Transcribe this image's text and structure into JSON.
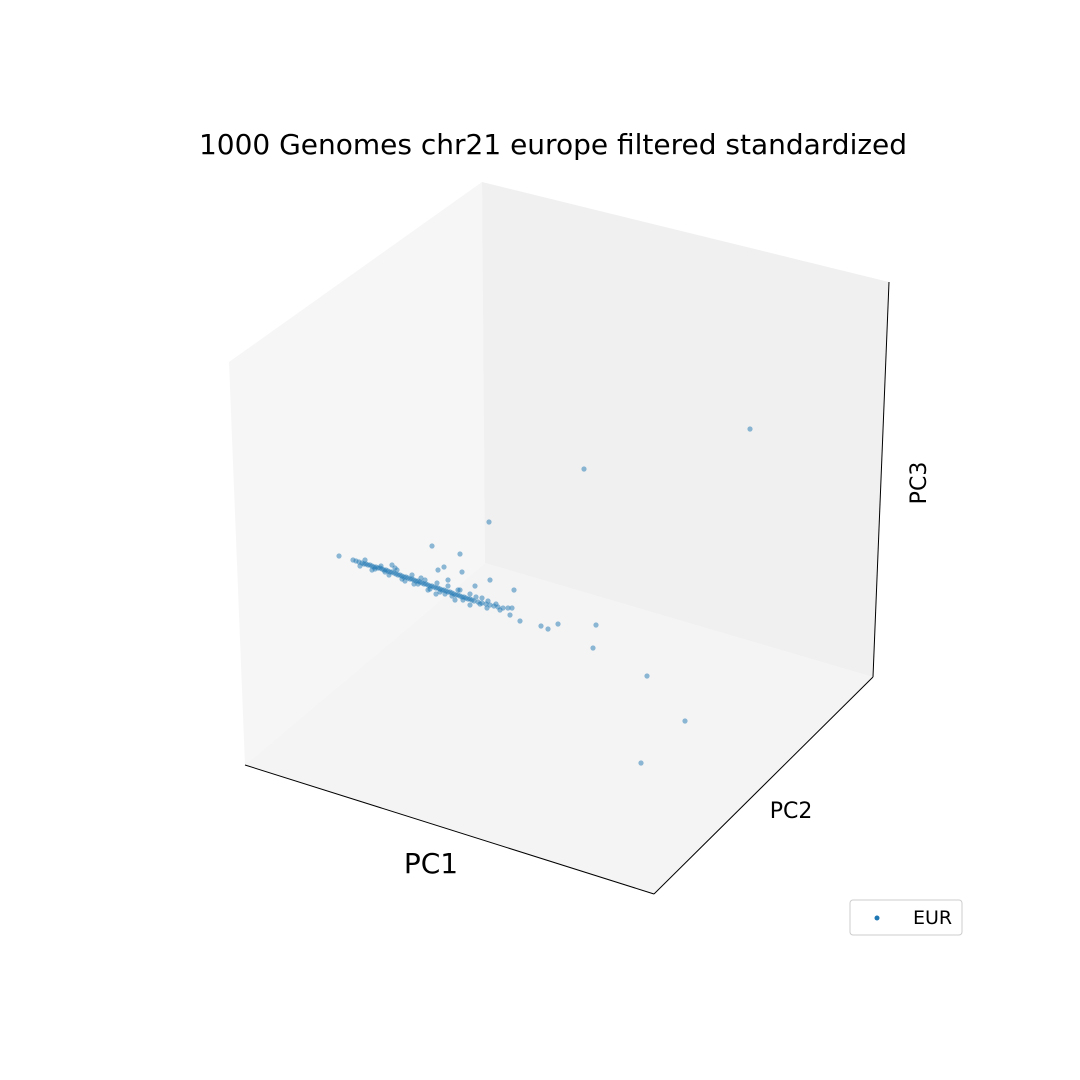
{
  "chart_data": {
    "type": "scatter",
    "dimensions": 3,
    "title": "1000 Genomes chr21 europe filtered standardized",
    "xlabel": "PC1",
    "ylabel": "PC2",
    "zlabel": "PC3",
    "ticks_visible": false,
    "grid": false,
    "legend": {
      "placement": "bottom-right",
      "entries": [
        "EUR"
      ]
    },
    "series": [
      {
        "name": "EUR",
        "color": "#1f77b4",
        "points_projected": [
          [
            339,
            556
          ],
          [
            353,
            560
          ],
          [
            356,
            561
          ],
          [
            359,
            562
          ],
          [
            362,
            563
          ],
          [
            364,
            564
          ],
          [
            366,
            564
          ],
          [
            368,
            565
          ],
          [
            370,
            565
          ],
          [
            372,
            566
          ],
          [
            374,
            567
          ],
          [
            376,
            567
          ],
          [
            378,
            568
          ],
          [
            380,
            568
          ],
          [
            382,
            569
          ],
          [
            384,
            570
          ],
          [
            386,
            570
          ],
          [
            388,
            571
          ],
          [
            390,
            572
          ],
          [
            392,
            572
          ],
          [
            394,
            573
          ],
          [
            396,
            574
          ],
          [
            398,
            575
          ],
          [
            400,
            575
          ],
          [
            402,
            576
          ],
          [
            404,
            577
          ],
          [
            406,
            577
          ],
          [
            408,
            578
          ],
          [
            410,
            579
          ],
          [
            412,
            579
          ],
          [
            414,
            580
          ],
          [
            416,
            581
          ],
          [
            418,
            581
          ],
          [
            420,
            582
          ],
          [
            422,
            583
          ],
          [
            424,
            584
          ],
          [
            426,
            584
          ],
          [
            428,
            585
          ],
          [
            430,
            586
          ],
          [
            432,
            586
          ],
          [
            434,
            587
          ],
          [
            436,
            588
          ],
          [
            438,
            588
          ],
          [
            440,
            589
          ],
          [
            442,
            590
          ],
          [
            444,
            590
          ],
          [
            446,
            591
          ],
          [
            448,
            592
          ],
          [
            450,
            592
          ],
          [
            452,
            593
          ],
          [
            454,
            594
          ],
          [
            456,
            595
          ],
          [
            458,
            595
          ],
          [
            460,
            596
          ],
          [
            462,
            597
          ],
          [
            464,
            597
          ],
          [
            466,
            598
          ],
          [
            468,
            599
          ],
          [
            470,
            599
          ],
          [
            472,
            600
          ],
          [
            474,
            601
          ],
          [
            478,
            602
          ],
          [
            482,
            603
          ],
          [
            486,
            604
          ],
          [
            490,
            605
          ],
          [
            494,
            606
          ],
          [
            498,
            607
          ],
          [
            503,
            608
          ],
          [
            508,
            608
          ],
          [
            512,
            608
          ],
          [
            360,
            566
          ],
          [
            375,
            569
          ],
          [
            385,
            572
          ],
          [
            395,
            568
          ],
          [
            402,
            579
          ],
          [
            412,
            575
          ],
          [
            418,
            584
          ],
          [
            425,
            580
          ],
          [
            430,
            589
          ],
          [
            437,
            583
          ],
          [
            440,
            592
          ],
          [
            448,
            586
          ],
          [
            452,
            596
          ],
          [
            458,
            590
          ],
          [
            463,
            600
          ],
          [
            470,
            594
          ],
          [
            476,
            597
          ],
          [
            482,
            598
          ],
          [
            488,
            601
          ],
          [
            496,
            604
          ],
          [
            365,
            560
          ],
          [
            372,
            570
          ],
          [
            381,
            566
          ],
          [
            389,
            575
          ],
          [
            397,
            570
          ],
          [
            405,
            581
          ],
          [
            414,
            584
          ],
          [
            421,
            578
          ],
          [
            428,
            590
          ],
          [
            445,
            594
          ],
          [
            432,
            546
          ],
          [
            460,
            554
          ],
          [
            438,
            570
          ],
          [
            444,
            567
          ],
          [
            462,
            572
          ],
          [
            489,
            522
          ],
          [
            490,
            580
          ],
          [
            475,
            586
          ],
          [
            460,
            590
          ],
          [
            436,
            594
          ],
          [
            448,
            580
          ],
          [
            392,
            565
          ],
          [
            514,
            590
          ],
          [
            500,
            610
          ],
          [
            510,
            615
          ],
          [
            520,
            621
          ],
          [
            541,
            626
          ],
          [
            548,
            629
          ],
          [
            558,
            624
          ],
          [
            596,
            625
          ],
          [
            593,
            648
          ],
          [
            647,
            676
          ],
          [
            685,
            721
          ],
          [
            641,
            763
          ],
          [
            584,
            469
          ],
          [
            750,
            429
          ],
          [
            455,
            600
          ],
          [
            470,
            605
          ],
          [
            480,
            604
          ],
          [
            487,
            608
          ]
        ]
      }
    ]
  }
}
